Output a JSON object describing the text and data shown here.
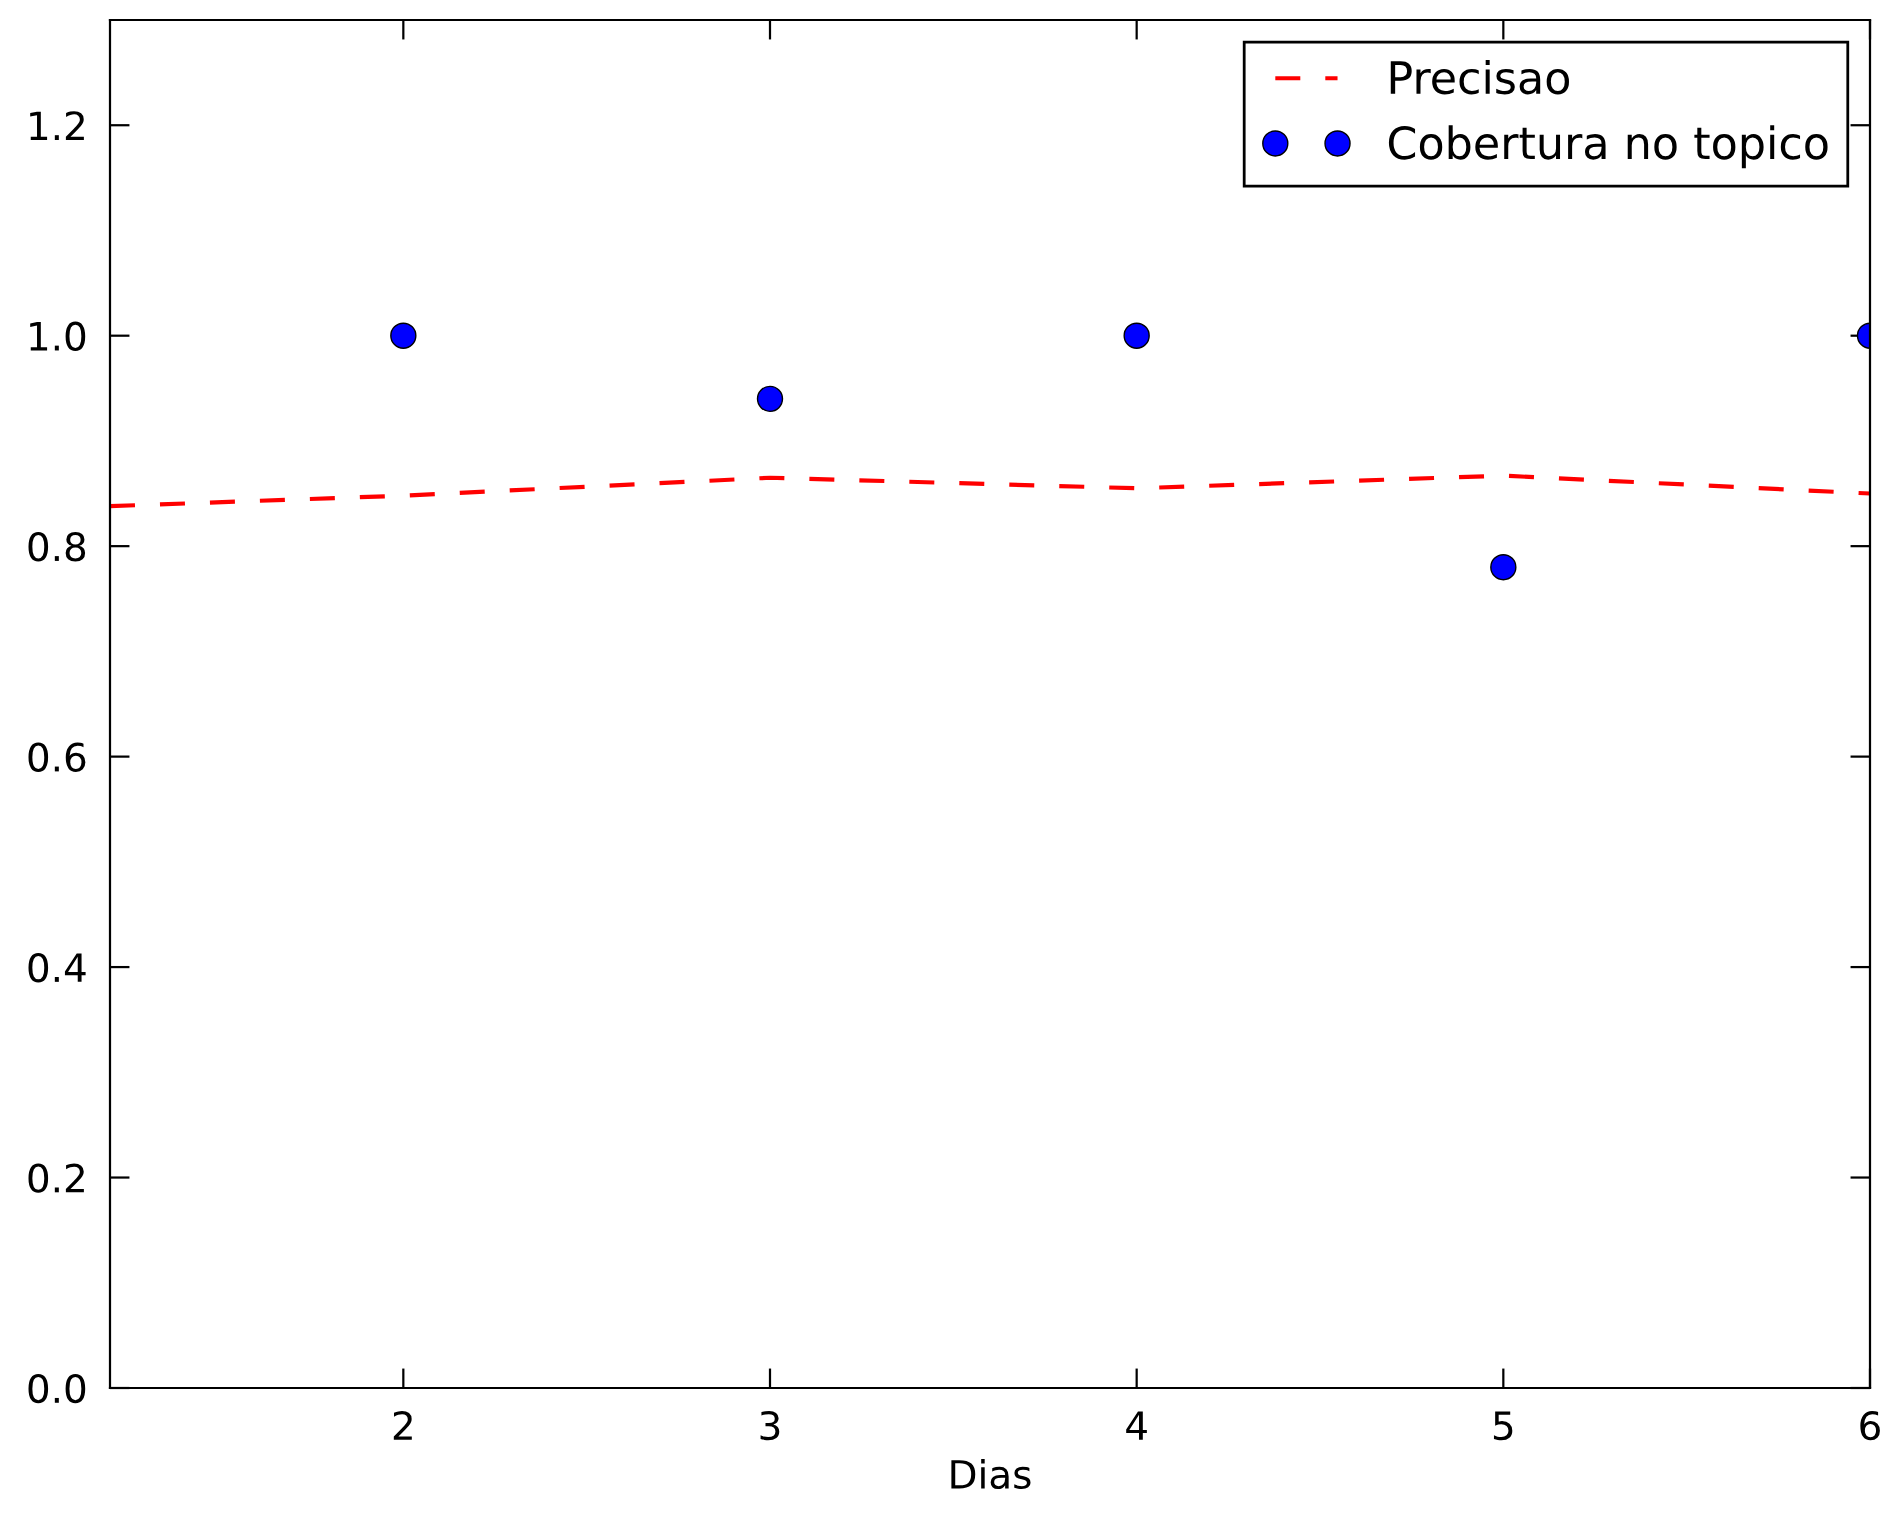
{
  "chart_data": {
    "type": "line",
    "xlabel": "Dias",
    "series": [
      {
        "name": "Precisao",
        "color": "#ff0000",
        "line_style": "dashed",
        "marker": "none",
        "x": [
          1.2,
          2,
          3,
          4,
          5,
          6
        ],
        "values": [
          0.838,
          0.848,
          0.865,
          0.855,
          0.867,
          0.85
        ]
      },
      {
        "name": "Cobertura no topico",
        "type": "scatter",
        "color": "#0000ff",
        "marker": "circle",
        "x": [
          2,
          3,
          4,
          5,
          6
        ],
        "values": [
          1.0,
          0.94,
          1.0,
          0.78,
          1.0
        ]
      }
    ],
    "xlim": [
      1.2,
      6
    ],
    "xticks": [
      2,
      3,
      4,
      5,
      6
    ],
    "ylim": [
      0,
      1.3
    ],
    "yticks": [
      {
        "value": 0,
        "label": "0.0"
      },
      {
        "value": 0.2,
        "label": "0.2"
      },
      {
        "value": 0.4,
        "label": "0.4"
      },
      {
        "value": 0.6,
        "label": "0.6"
      },
      {
        "value": 0.8,
        "label": "0.8"
      },
      {
        "value": 1.0,
        "label": "1.0"
      },
      {
        "value": 1.2,
        "label": "1.2"
      }
    ],
    "grid": false,
    "legend": "top right"
  }
}
